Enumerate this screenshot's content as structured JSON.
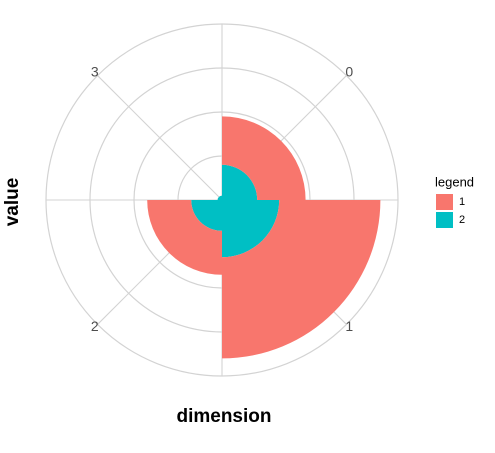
{
  "chart_data": {
    "type": "polar-bar",
    "x_label": "dimension",
    "y_label": "value",
    "categories": [
      "0",
      "1",
      "2",
      "3"
    ],
    "series": [
      {
        "name": "1",
        "color": "#f8766d",
        "values": [
          1.1,
          2.3,
          1.0,
          0
        ]
      },
      {
        "name": "2",
        "color": "#00bfc4",
        "values": [
          0.8,
          1.3,
          0.7,
          0.1
        ]
      }
    ],
    "stacked": true,
    "ylim": [
      0,
      4
    ],
    "yticks": [
      1,
      2,
      3,
      4
    ],
    "grid": true,
    "legend_title": "legend",
    "legend_position": "right"
  }
}
